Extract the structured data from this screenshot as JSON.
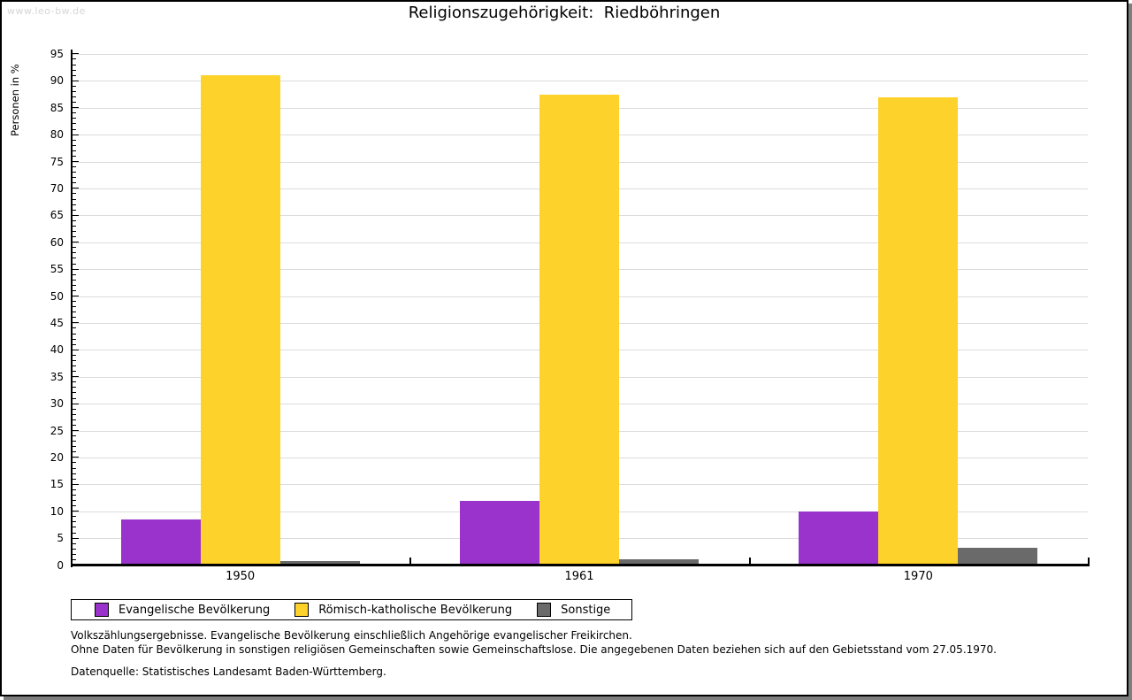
{
  "watermark": "www.leo-bw.de",
  "title": "Religionszugehörigkeit:  Riedböhringen",
  "legend": {
    "items": [
      {
        "label": "Evangelische Bevölkerung",
        "color": "#9933cc"
      },
      {
        "label": "Römisch-katholische Bevölkerung",
        "color": "#fdd32b"
      },
      {
        "label": "Sonstige",
        "color": "#6a6a6a"
      }
    ]
  },
  "footnotes": [
    "Volkszählungsergebnisse. Evangelische Bevölkerung einschließlich Angehörige evangelischer Freikirchen.",
    "Ohne Daten für Bevölkerung in sonstigen religiösen Gemeinschaften sowie Gemeinschaftslose. Die angegebenen Daten beziehen sich auf den Gebietsstand vom 27.05.1970."
  ],
  "source": "Datenquelle: Statistisches Landesamt Baden-Württemberg.",
  "chart_data": {
    "type": "bar",
    "title": "Religionszugehörigkeit: Riedböhringen",
    "xlabel": "",
    "ylabel": "Personen in %",
    "categories": [
      "1950",
      "1961",
      "1970"
    ],
    "series": [
      {
        "name": "Evangelische Bevölkerung",
        "color": "#9933cc",
        "values": [
          8.5,
          12.0,
          9.9
        ]
      },
      {
        "name": "Römisch-katholische Bevölkerung",
        "color": "#fdd32b",
        "values": [
          91.1,
          87.4,
          87.0
        ]
      },
      {
        "name": "Sonstige",
        "color": "#6a6a6a",
        "values": [
          0.7,
          1.0,
          3.2
        ]
      }
    ],
    "ylim": [
      0,
      95
    ],
    "ytick_step": 5,
    "minor_tick_step": 1,
    "grid": true,
    "gridline_color": "#dcdcdc",
    "legend_position": "bottom"
  }
}
